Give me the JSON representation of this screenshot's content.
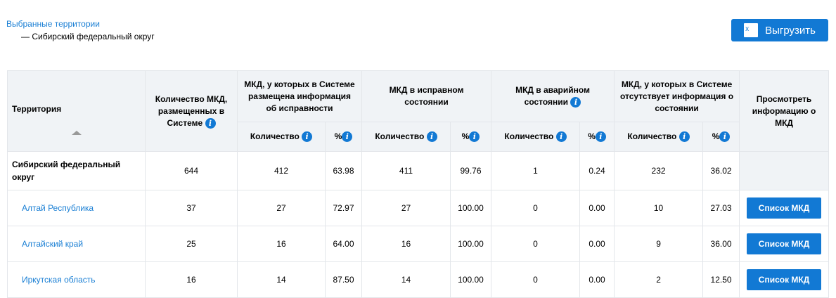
{
  "selected": {
    "title": "Выбранные территории",
    "item": "— Сибирский федеральный округ"
  },
  "export_label": "Выгрузить",
  "headers": {
    "territory": "Территория",
    "total": "Количество МКД, размещенных в Системе",
    "with_info": "МКД, у которых в Системе размещена информация об исправности",
    "good": "МКД в исправном состоянии",
    "emergency": "МКД в аварийном состоянии",
    "no_info": "МКД, у которых в Системе отсутствует информация о состоянии",
    "view": "Просмотреть информацию о МКД",
    "count": "Количество",
    "pct": "%"
  },
  "rows": [
    {
      "name": "Сибирский федеральный округ",
      "total": "644",
      "c1": "412",
      "p1": "63.98",
      "c2": "411",
      "p2": "99.76",
      "c3": "1",
      "p3": "0.24",
      "c4": "232",
      "p4": "36.02",
      "button": ""
    },
    {
      "name": "Алтай Республика",
      "total": "37",
      "c1": "27",
      "p1": "72.97",
      "c2": "27",
      "p2": "100.00",
      "c3": "0",
      "p3": "0.00",
      "c4": "10",
      "p4": "27.03",
      "button": "Список МКД"
    },
    {
      "name": "Алтайский край",
      "total": "25",
      "c1": "16",
      "p1": "64.00",
      "c2": "16",
      "p2": "100.00",
      "c3": "0",
      "p3": "0.00",
      "c4": "9",
      "p4": "36.00",
      "button": "Список МКД"
    },
    {
      "name": "Иркутская область",
      "total": "16",
      "c1": "14",
      "p1": "87.50",
      "c2": "14",
      "p2": "100.00",
      "c3": "0",
      "p3": "0.00",
      "c4": "2",
      "p4": "12.50",
      "button": "Список МКД"
    }
  ]
}
